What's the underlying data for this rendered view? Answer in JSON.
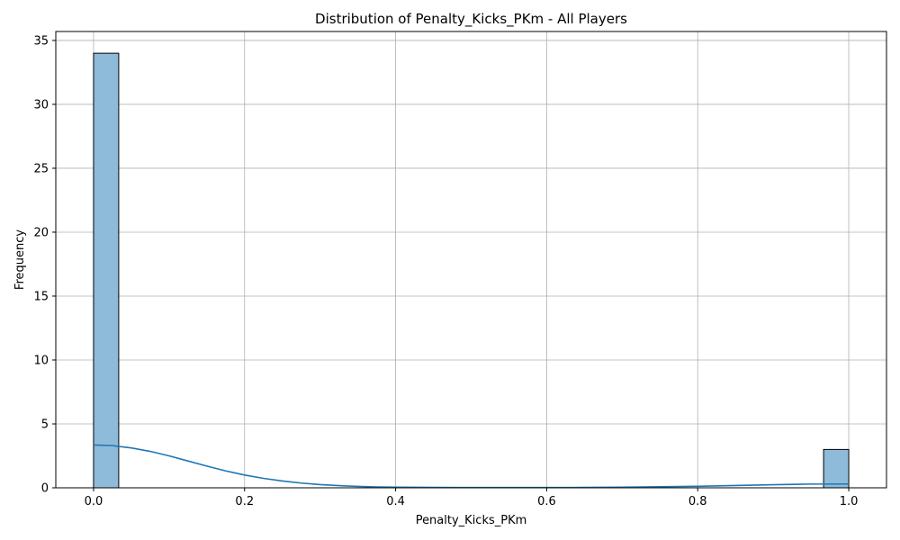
{
  "chart_data": {
    "type": "bar",
    "title": "Distribution of Penalty_Kicks_PKm - All Players",
    "xlabel": "Penalty_Kicks_PKm",
    "ylabel": "Frequency",
    "xlim": [
      -0.05,
      1.05
    ],
    "ylim": [
      0,
      35.7
    ],
    "x_ticks": [
      0.0,
      0.2,
      0.4,
      0.6,
      0.8,
      1.0
    ],
    "x_tick_labels": [
      "0.0",
      "0.2",
      "0.4",
      "0.6",
      "0.8",
      "1.0"
    ],
    "y_ticks": [
      0,
      5,
      10,
      15,
      20,
      25,
      30,
      35
    ],
    "y_tick_labels": [
      "0",
      "5",
      "10",
      "15",
      "20",
      "25",
      "30",
      "35"
    ],
    "grid": true,
    "bins": [
      {
        "start": 0.0,
        "end": 0.0333,
        "count": 34
      },
      {
        "start": 0.9667,
        "end": 1.0,
        "count": 3
      }
    ],
    "kde": {
      "x": [
        0.0,
        0.025,
        0.05,
        0.075,
        0.1,
        0.125,
        0.15,
        0.175,
        0.2,
        0.225,
        0.25,
        0.275,
        0.3,
        0.325,
        0.35,
        0.375,
        0.4,
        0.45,
        0.5,
        0.55,
        0.6,
        0.65,
        0.7,
        0.75,
        0.8,
        0.85,
        0.9,
        0.95,
        1.0
      ],
      "y": [
        3.35,
        3.3,
        3.12,
        2.85,
        2.5,
        2.1,
        1.7,
        1.32,
        1.0,
        0.74,
        0.53,
        0.37,
        0.25,
        0.17,
        0.11,
        0.07,
        0.05,
        0.03,
        0.02,
        0.02,
        0.02,
        0.03,
        0.05,
        0.08,
        0.12,
        0.18,
        0.24,
        0.29,
        0.3
      ]
    },
    "colors": {
      "bar_fill": "#8fbbdb",
      "bar_edge": "#000000",
      "kde_line": "#1f77b4",
      "grid": "#b0b0b0"
    }
  }
}
